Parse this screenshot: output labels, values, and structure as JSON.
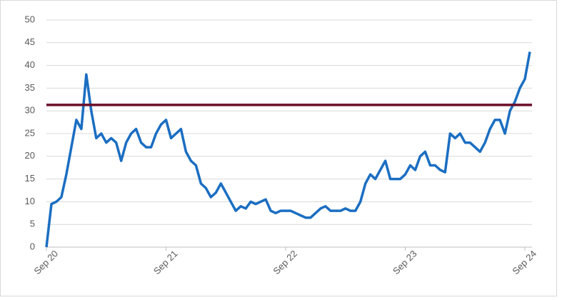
{
  "chart_data": {
    "type": "line",
    "categories": [
      "Sep 20",
      null,
      null,
      null,
      null,
      null,
      null,
      null,
      null,
      null,
      null,
      null,
      null,
      null,
      null,
      null,
      null,
      null,
      null,
      null,
      null,
      null,
      null,
      null,
      "Sep 21",
      null,
      null,
      null,
      null,
      null,
      null,
      null,
      null,
      null,
      null,
      null,
      null,
      null,
      null,
      null,
      null,
      null,
      null,
      null,
      null,
      null,
      null,
      null,
      "Sep 22",
      null,
      null,
      null,
      null,
      null,
      null,
      null,
      null,
      null,
      null,
      null,
      null,
      null,
      null,
      null,
      null,
      null,
      null,
      null,
      null,
      null,
      null,
      null,
      "Sep 23",
      null,
      null,
      null,
      null,
      null,
      null,
      null,
      null,
      null,
      null,
      null,
      null,
      null,
      null,
      null,
      null,
      null,
      null,
      null,
      null,
      null,
      null,
      null,
      "Sep 24",
      null
    ],
    "series": [
      {
        "color": "#1b6ec2",
        "values": [
          0,
          9.5,
          10,
          11,
          16,
          22,
          28,
          26,
          38,
          30,
          24,
          25,
          23,
          24,
          23,
          19,
          23,
          25,
          26,
          23,
          22,
          22,
          25,
          27,
          28,
          24,
          25,
          26,
          21,
          19,
          18,
          14,
          13,
          11,
          12,
          14,
          12,
          10,
          8,
          9,
          8.5,
          10,
          9.5,
          10,
          10.5,
          8,
          7.5,
          8,
          8,
          8,
          7.5,
          7,
          6.5,
          6.5,
          7.5,
          8.5,
          9,
          8,
          8,
          8,
          8.5,
          8,
          8,
          10,
          14,
          16,
          15,
          17,
          19,
          15,
          15,
          15,
          16,
          18,
          17,
          20,
          21,
          18,
          18,
          17,
          16.5,
          25,
          24,
          25,
          23,
          23,
          22,
          21,
          23,
          26,
          28,
          28,
          25,
          30,
          32,
          35,
          37,
          43
        ]
      }
    ],
    "reference_line": {
      "value": 31.3,
      "color": "#6b0f2b"
    },
    "ylim": [
      0,
      50
    ],
    "yticks": [
      0,
      5,
      10,
      15,
      20,
      25,
      30,
      35,
      40,
      45,
      50
    ],
    "grid": true
  }
}
